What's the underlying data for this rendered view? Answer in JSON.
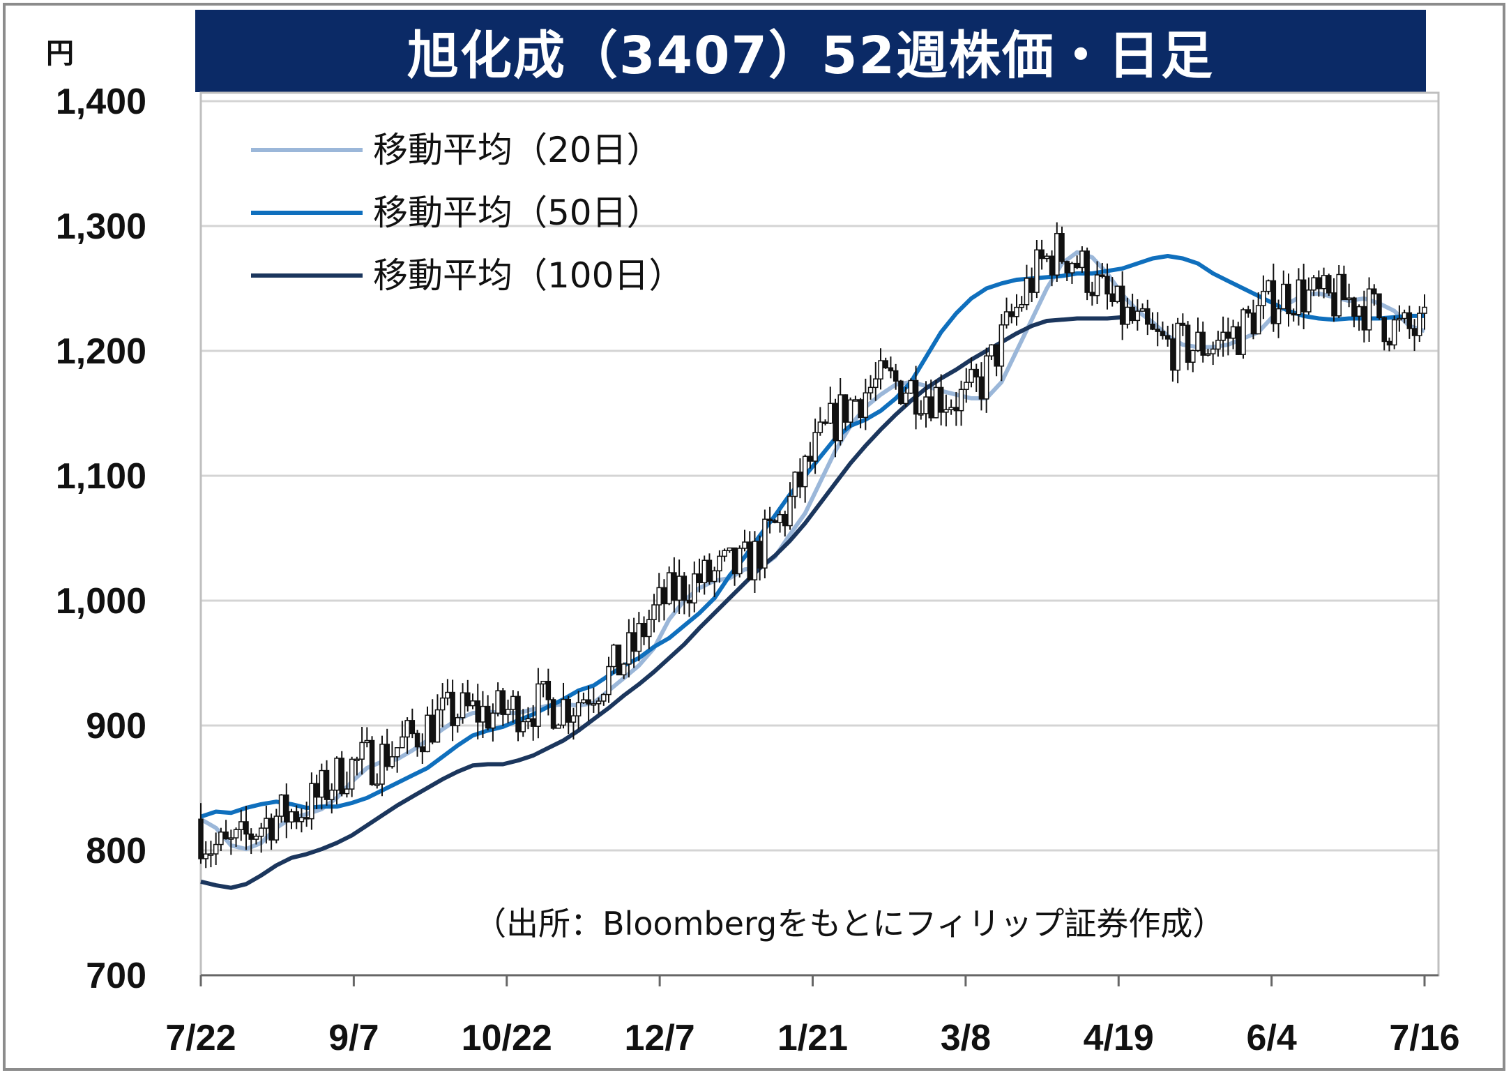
{
  "chart_data": {
    "type": "line",
    "title": "旭化成（3407）52週株価・日足",
    "y_unit": "円",
    "ylim": [
      700,
      1400
    ],
    "y_ticks": [
      700,
      800,
      900,
      1000,
      1100,
      1200,
      1300,
      1400
    ],
    "y_tick_labels": [
      "700",
      "800",
      "900",
      "1,000",
      "1,100",
      "1,200",
      "1,300",
      "1,400"
    ],
    "x_tick_labels": [
      "7/22",
      "9/7",
      "10/22",
      "12/7",
      "1/21",
      "3/8",
      "4/19",
      "6/4",
      "7/16"
    ],
    "grid": true,
    "legend_position": "top-left",
    "series": [
      {
        "name": "移動平均（20日）",
        "color": "#9bb7d9",
        "points": [
          [
            0,
            825
          ],
          [
            3,
            818
          ],
          [
            6,
            804
          ],
          [
            9,
            801
          ],
          [
            12,
            806
          ],
          [
            15,
            818
          ],
          [
            18,
            826
          ],
          [
            21,
            829
          ],
          [
            24,
            833
          ],
          [
            27,
            842
          ],
          [
            30,
            855
          ],
          [
            33,
            866
          ],
          [
            36,
            871
          ],
          [
            39,
            873
          ],
          [
            42,
            880
          ],
          [
            45,
            888
          ],
          [
            48,
            897
          ],
          [
            51,
            905
          ],
          [
            54,
            910
          ],
          [
            57,
            911
          ],
          [
            60,
            910
          ],
          [
            63,
            910
          ],
          [
            66,
            913
          ],
          [
            69,
            916
          ],
          [
            72,
            917
          ],
          [
            75,
            916
          ],
          [
            78,
            918
          ],
          [
            81,
            928
          ],
          [
            84,
            938
          ],
          [
            87,
            948
          ],
          [
            90,
            962
          ],
          [
            93,
            985
          ],
          [
            96,
            1000
          ],
          [
            99,
            1010
          ],
          [
            102,
            1016
          ],
          [
            105,
            1018
          ],
          [
            108,
            1025
          ],
          [
            111,
            1026
          ],
          [
            114,
            1035
          ],
          [
            117,
            1053
          ],
          [
            120,
            1070
          ],
          [
            123,
            1095
          ],
          [
            126,
            1120
          ],
          [
            129,
            1140
          ],
          [
            132,
            1155
          ],
          [
            135,
            1165
          ],
          [
            138,
            1173
          ],
          [
            141,
            1175
          ],
          [
            144,
            1172
          ],
          [
            147,
            1168
          ],
          [
            150,
            1165
          ],
          [
            153,
            1162
          ],
          [
            156,
            1162
          ],
          [
            159,
            1175
          ],
          [
            162,
            1200
          ],
          [
            165,
            1225
          ],
          [
            168,
            1250
          ],
          [
            171,
            1270
          ],
          [
            174,
            1279
          ],
          [
            177,
            1275
          ],
          [
            180,
            1262
          ],
          [
            183,
            1245
          ],
          [
            186,
            1232
          ],
          [
            189,
            1223
          ],
          [
            192,
            1212
          ],
          [
            195,
            1205
          ],
          [
            198,
            1203
          ],
          [
            201,
            1203
          ],
          [
            204,
            1205
          ],
          [
            207,
            1210
          ],
          [
            210,
            1215
          ],
          [
            213,
            1228
          ],
          [
            216,
            1238
          ],
          [
            219,
            1245
          ],
          [
            222,
            1246
          ],
          [
            225,
            1243
          ],
          [
            228,
            1240
          ],
          [
            231,
            1242
          ],
          [
            234,
            1238
          ],
          [
            237,
            1232
          ],
          [
            240,
            1220
          ],
          [
            243,
            1216
          ]
        ]
      },
      {
        "name": "移動平均（50日）",
        "color": "#0f6fbd",
        "points": [
          [
            0,
            827
          ],
          [
            3,
            831
          ],
          [
            6,
            830
          ],
          [
            9,
            834
          ],
          [
            12,
            837
          ],
          [
            15,
            839
          ],
          [
            18,
            837
          ],
          [
            21,
            834
          ],
          [
            24,
            835
          ],
          [
            27,
            835
          ],
          [
            30,
            838
          ],
          [
            33,
            842
          ],
          [
            36,
            848
          ],
          [
            39,
            854
          ],
          [
            42,
            860
          ],
          [
            45,
            866
          ],
          [
            48,
            875
          ],
          [
            51,
            884
          ],
          [
            54,
            892
          ],
          [
            57,
            896
          ],
          [
            60,
            899
          ],
          [
            63,
            904
          ],
          [
            66,
            909
          ],
          [
            69,
            915
          ],
          [
            72,
            921
          ],
          [
            75,
            928
          ],
          [
            78,
            932
          ],
          [
            81,
            940
          ],
          [
            84,
            948
          ],
          [
            87,
            954
          ],
          [
            90,
            963
          ],
          [
            93,
            970
          ],
          [
            96,
            980
          ],
          [
            99,
            990
          ],
          [
            102,
            1002
          ],
          [
            105,
            1020
          ],
          [
            108,
            1035
          ],
          [
            111,
            1052
          ],
          [
            114,
            1068
          ],
          [
            117,
            1085
          ],
          [
            120,
            1100
          ],
          [
            123,
            1115
          ],
          [
            126,
            1130
          ],
          [
            129,
            1140
          ],
          [
            132,
            1145
          ],
          [
            135,
            1152
          ],
          [
            138,
            1162
          ],
          [
            141,
            1175
          ],
          [
            144,
            1195
          ],
          [
            147,
            1215
          ],
          [
            150,
            1230
          ],
          [
            153,
            1242
          ],
          [
            156,
            1250
          ],
          [
            159,
            1254
          ],
          [
            162,
            1257
          ],
          [
            165,
            1258
          ],
          [
            168,
            1259
          ],
          [
            171,
            1260
          ],
          [
            174,
            1262
          ],
          [
            177,
            1262
          ],
          [
            180,
            1264
          ],
          [
            183,
            1266
          ],
          [
            186,
            1270
          ],
          [
            189,
            1274
          ],
          [
            192,
            1276
          ],
          [
            195,
            1274
          ],
          [
            198,
            1270
          ],
          [
            201,
            1262
          ],
          [
            204,
            1256
          ],
          [
            207,
            1250
          ],
          [
            210,
            1244
          ],
          [
            213,
            1238
          ],
          [
            216,
            1232
          ],
          [
            219,
            1228
          ],
          [
            222,
            1226
          ],
          [
            225,
            1225
          ],
          [
            228,
            1226
          ],
          [
            231,
            1226
          ],
          [
            234,
            1226
          ],
          [
            237,
            1227
          ],
          [
            240,
            1228
          ],
          [
            243,
            1228
          ]
        ]
      },
      {
        "name": "移動平均（100日）",
        "color": "#1b365d",
        "points": [
          [
            0,
            775
          ],
          [
            3,
            772
          ],
          [
            6,
            770
          ],
          [
            9,
            773
          ],
          [
            12,
            780
          ],
          [
            15,
            788
          ],
          [
            18,
            794
          ],
          [
            21,
            797
          ],
          [
            24,
            801
          ],
          [
            27,
            806
          ],
          [
            30,
            812
          ],
          [
            33,
            820
          ],
          [
            36,
            828
          ],
          [
            39,
            836
          ],
          [
            42,
            843
          ],
          [
            45,
            850
          ],
          [
            48,
            857
          ],
          [
            51,
            863
          ],
          [
            54,
            868
          ],
          [
            57,
            869
          ],
          [
            60,
            869
          ],
          [
            63,
            872
          ],
          [
            66,
            876
          ],
          [
            69,
            882
          ],
          [
            72,
            888
          ],
          [
            75,
            896
          ],
          [
            78,
            905
          ],
          [
            81,
            914
          ],
          [
            84,
            924
          ],
          [
            87,
            933
          ],
          [
            90,
            943
          ],
          [
            93,
            954
          ],
          [
            96,
            965
          ],
          [
            99,
            978
          ],
          [
            102,
            990
          ],
          [
            105,
            1002
          ],
          [
            108,
            1014
          ],
          [
            111,
            1026
          ],
          [
            114,
            1036
          ],
          [
            117,
            1048
          ],
          [
            120,
            1062
          ],
          [
            123,
            1078
          ],
          [
            126,
            1094
          ],
          [
            129,
            1110
          ],
          [
            132,
            1124
          ],
          [
            135,
            1137
          ],
          [
            138,
            1149
          ],
          [
            141,
            1160
          ],
          [
            144,
            1170
          ],
          [
            147,
            1178
          ],
          [
            150,
            1185
          ],
          [
            153,
            1193
          ],
          [
            156,
            1200
          ],
          [
            159,
            1207
          ],
          [
            162,
            1214
          ],
          [
            165,
            1220
          ],
          [
            168,
            1224
          ],
          [
            171,
            1225
          ],
          [
            174,
            1226
          ],
          [
            177,
            1226
          ],
          [
            180,
            1226
          ],
          [
            183,
            1227
          ]
        ]
      }
    ],
    "x_day_range": [
      0,
      243
    ],
    "source_note": "（出所：Bloombergをもとにフィリップ証券作成）"
  }
}
